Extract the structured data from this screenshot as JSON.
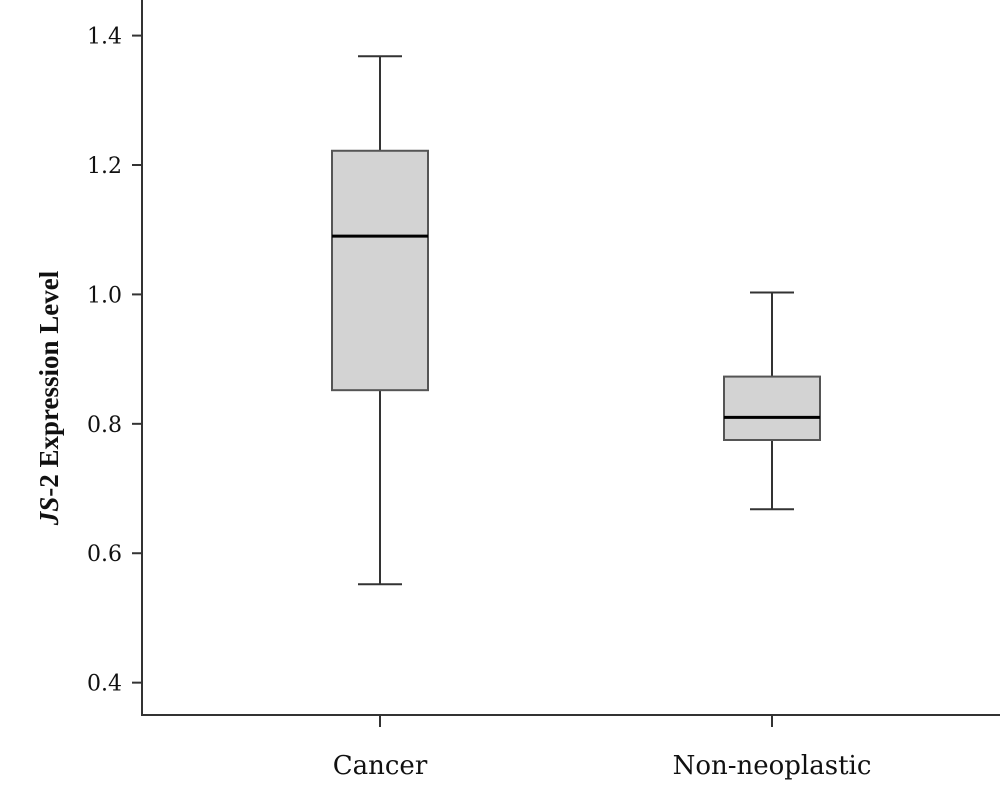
{
  "chart_data": {
    "type": "box",
    "ylabel_italic": "JS",
    "ylabel_rest": "-2 Expression Level",
    "xlabel": "",
    "ylim": [
      0.35,
      1.455
    ],
    "yticks": [
      0.4,
      0.6,
      0.8,
      1.0,
      1.2,
      1.4
    ],
    "ytick_labels": [
      "0.4",
      "0.6",
      "0.8",
      "1.0",
      "1.2",
      "1.4"
    ],
    "categories": [
      "Cancer",
      "Non-neoplastic"
    ],
    "boxes": [
      {
        "category": "Cancer",
        "min": 0.552,
        "q1": 0.852,
        "median": 1.09,
        "q3": 1.222,
        "max": 1.368
      },
      {
        "category": "Non-neoplastic",
        "min": 0.668,
        "q1": 0.775,
        "median": 0.81,
        "q3": 0.873,
        "max": 1.003
      }
    ],
    "box_fill": "#d3d3d3",
    "box_stroke": "#555555",
    "grid": false,
    "legend": "none"
  }
}
